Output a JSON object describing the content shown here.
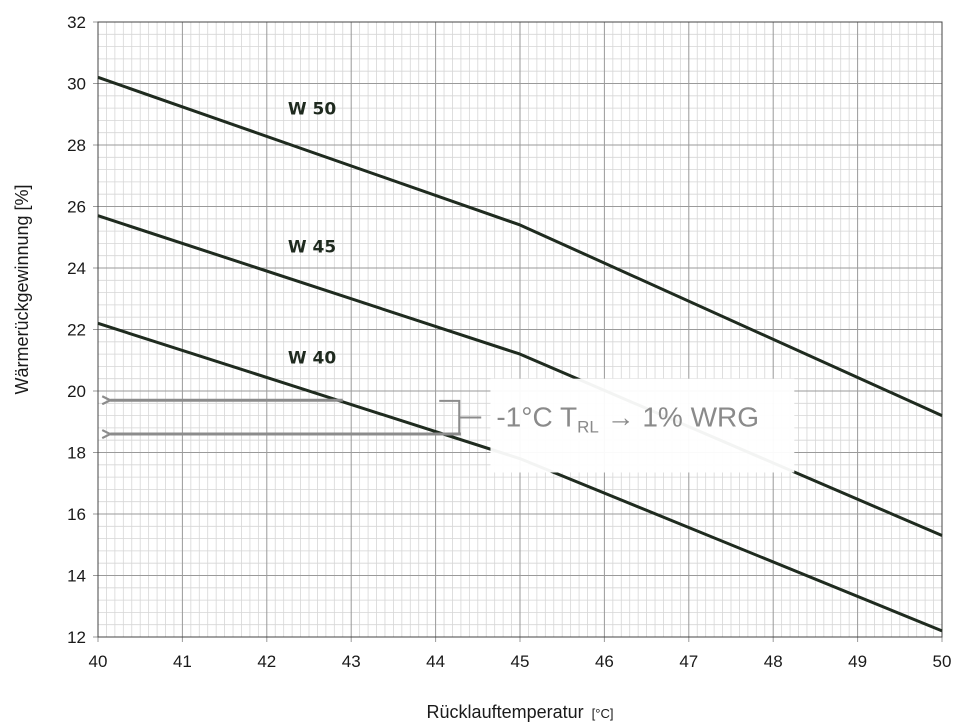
{
  "chart_data": {
    "type": "line",
    "title": "",
    "xlabel": "Rücklauftemperatur",
    "xlabel_unit": "[°C]",
    "ylabel": "Wärmerückgewinnung [%]",
    "xlim": [
      40,
      50
    ],
    "ylim": [
      12,
      32
    ],
    "x_ticks": [
      "40",
      "41",
      "42",
      "43",
      "44",
      "45",
      "46",
      "47",
      "48",
      "49",
      "50"
    ],
    "y_ticks": [
      "12",
      "14",
      "16",
      "18",
      "20",
      "22",
      "24",
      "26",
      "28",
      "30",
      "32"
    ],
    "grid": true,
    "minor_grid": true,
    "series": [
      {
        "name": "W 50",
        "x": [
          40,
          45,
          50
        ],
        "y": [
          30.2,
          25.4,
          19.2
        ]
      },
      {
        "name": "W 45",
        "x": [
          40,
          45,
          50
        ],
        "y": [
          25.7,
          21.2,
          15.3
        ]
      },
      {
        "name": "W 40",
        "x": [
          40,
          45,
          50
        ],
        "y": [
          22.2,
          17.8,
          12.2
        ]
      }
    ],
    "series_label_positions": [
      {
        "text": "W 50",
        "x": 42.25,
        "y": 29.0
      },
      {
        "text": "W 45",
        "x": 42.25,
        "y": 24.5
      },
      {
        "text": "W 40",
        "x": 42.25,
        "y": 20.9
      }
    ],
    "annotation": {
      "prefix": "-1°C T",
      "subscript": "RL",
      "suffix": " → 1% WRG",
      "arrows": [
        {
          "from_x": 42.9,
          "to_x": 40.05,
          "y": 19.7
        },
        {
          "from_x": 44.3,
          "to_x": 40.05,
          "y": 18.6
        }
      ]
    },
    "colors": {
      "line": "#1f2b1f",
      "grid_major": "#9a9a9a",
      "grid_minor": "#d6d6d6",
      "arrow": "#8c8c8c"
    }
  }
}
